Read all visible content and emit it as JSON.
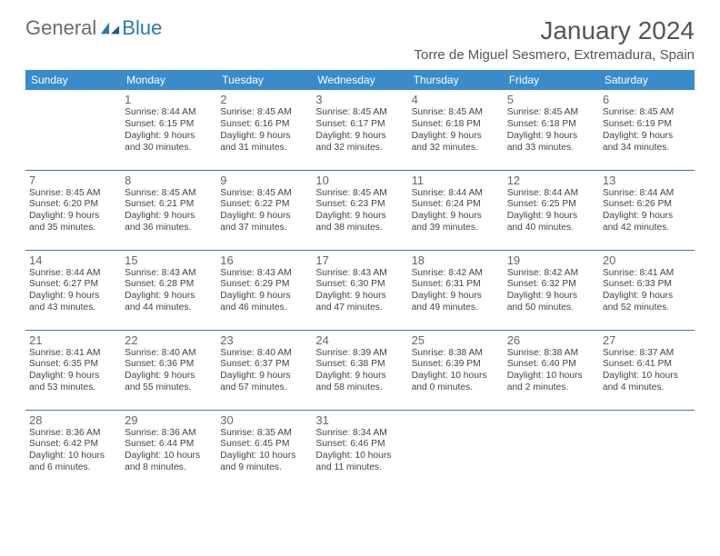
{
  "brand": {
    "part1": "General",
    "part2": "Blue"
  },
  "colors": {
    "header_bg": "#3a8bc9",
    "header_text": "#ffffff",
    "row_border": "#3a7aa8",
    "title_color": "#555555",
    "body_text": "#444444",
    "daynum_color": "#666666",
    "page_bg": "#ffffff"
  },
  "title": "January 2024",
  "subtitle": "Torre de Miguel Sesmero, Extremadura, Spain",
  "weekdays": [
    "Sunday",
    "Monday",
    "Tuesday",
    "Wednesday",
    "Thursday",
    "Friday",
    "Saturday"
  ],
  "weeks": [
    [
      null,
      {
        "n": "1",
        "sr": "Sunrise: 8:44 AM",
        "ss": "Sunset: 6:15 PM",
        "d1": "Daylight: 9 hours",
        "d2": "and 30 minutes."
      },
      {
        "n": "2",
        "sr": "Sunrise: 8:45 AM",
        "ss": "Sunset: 6:16 PM",
        "d1": "Daylight: 9 hours",
        "d2": "and 31 minutes."
      },
      {
        "n": "3",
        "sr": "Sunrise: 8:45 AM",
        "ss": "Sunset: 6:17 PM",
        "d1": "Daylight: 9 hours",
        "d2": "and 32 minutes."
      },
      {
        "n": "4",
        "sr": "Sunrise: 8:45 AM",
        "ss": "Sunset: 6:18 PM",
        "d1": "Daylight: 9 hours",
        "d2": "and 32 minutes."
      },
      {
        "n": "5",
        "sr": "Sunrise: 8:45 AM",
        "ss": "Sunset: 6:18 PM",
        "d1": "Daylight: 9 hours",
        "d2": "and 33 minutes."
      },
      {
        "n": "6",
        "sr": "Sunrise: 8:45 AM",
        "ss": "Sunset: 6:19 PM",
        "d1": "Daylight: 9 hours",
        "d2": "and 34 minutes."
      }
    ],
    [
      {
        "n": "7",
        "sr": "Sunrise: 8:45 AM",
        "ss": "Sunset: 6:20 PM",
        "d1": "Daylight: 9 hours",
        "d2": "and 35 minutes."
      },
      {
        "n": "8",
        "sr": "Sunrise: 8:45 AM",
        "ss": "Sunset: 6:21 PM",
        "d1": "Daylight: 9 hours",
        "d2": "and 36 minutes."
      },
      {
        "n": "9",
        "sr": "Sunrise: 8:45 AM",
        "ss": "Sunset: 6:22 PM",
        "d1": "Daylight: 9 hours",
        "d2": "and 37 minutes."
      },
      {
        "n": "10",
        "sr": "Sunrise: 8:45 AM",
        "ss": "Sunset: 6:23 PM",
        "d1": "Daylight: 9 hours",
        "d2": "and 38 minutes."
      },
      {
        "n": "11",
        "sr": "Sunrise: 8:44 AM",
        "ss": "Sunset: 6:24 PM",
        "d1": "Daylight: 9 hours",
        "d2": "and 39 minutes."
      },
      {
        "n": "12",
        "sr": "Sunrise: 8:44 AM",
        "ss": "Sunset: 6:25 PM",
        "d1": "Daylight: 9 hours",
        "d2": "and 40 minutes."
      },
      {
        "n": "13",
        "sr": "Sunrise: 8:44 AM",
        "ss": "Sunset: 6:26 PM",
        "d1": "Daylight: 9 hours",
        "d2": "and 42 minutes."
      }
    ],
    [
      {
        "n": "14",
        "sr": "Sunrise: 8:44 AM",
        "ss": "Sunset: 6:27 PM",
        "d1": "Daylight: 9 hours",
        "d2": "and 43 minutes."
      },
      {
        "n": "15",
        "sr": "Sunrise: 8:43 AM",
        "ss": "Sunset: 6:28 PM",
        "d1": "Daylight: 9 hours",
        "d2": "and 44 minutes."
      },
      {
        "n": "16",
        "sr": "Sunrise: 8:43 AM",
        "ss": "Sunset: 6:29 PM",
        "d1": "Daylight: 9 hours",
        "d2": "and 46 minutes."
      },
      {
        "n": "17",
        "sr": "Sunrise: 8:43 AM",
        "ss": "Sunset: 6:30 PM",
        "d1": "Daylight: 9 hours",
        "d2": "and 47 minutes."
      },
      {
        "n": "18",
        "sr": "Sunrise: 8:42 AM",
        "ss": "Sunset: 6:31 PM",
        "d1": "Daylight: 9 hours",
        "d2": "and 49 minutes."
      },
      {
        "n": "19",
        "sr": "Sunrise: 8:42 AM",
        "ss": "Sunset: 6:32 PM",
        "d1": "Daylight: 9 hours",
        "d2": "and 50 minutes."
      },
      {
        "n": "20",
        "sr": "Sunrise: 8:41 AM",
        "ss": "Sunset: 6:33 PM",
        "d1": "Daylight: 9 hours",
        "d2": "and 52 minutes."
      }
    ],
    [
      {
        "n": "21",
        "sr": "Sunrise: 8:41 AM",
        "ss": "Sunset: 6:35 PM",
        "d1": "Daylight: 9 hours",
        "d2": "and 53 minutes."
      },
      {
        "n": "22",
        "sr": "Sunrise: 8:40 AM",
        "ss": "Sunset: 6:36 PM",
        "d1": "Daylight: 9 hours",
        "d2": "and 55 minutes."
      },
      {
        "n": "23",
        "sr": "Sunrise: 8:40 AM",
        "ss": "Sunset: 6:37 PM",
        "d1": "Daylight: 9 hours",
        "d2": "and 57 minutes."
      },
      {
        "n": "24",
        "sr": "Sunrise: 8:39 AM",
        "ss": "Sunset: 6:38 PM",
        "d1": "Daylight: 9 hours",
        "d2": "and 58 minutes."
      },
      {
        "n": "25",
        "sr": "Sunrise: 8:38 AM",
        "ss": "Sunset: 6:39 PM",
        "d1": "Daylight: 10 hours",
        "d2": "and 0 minutes."
      },
      {
        "n": "26",
        "sr": "Sunrise: 8:38 AM",
        "ss": "Sunset: 6:40 PM",
        "d1": "Daylight: 10 hours",
        "d2": "and 2 minutes."
      },
      {
        "n": "27",
        "sr": "Sunrise: 8:37 AM",
        "ss": "Sunset: 6:41 PM",
        "d1": "Daylight: 10 hours",
        "d2": "and 4 minutes."
      }
    ],
    [
      {
        "n": "28",
        "sr": "Sunrise: 8:36 AM",
        "ss": "Sunset: 6:42 PM",
        "d1": "Daylight: 10 hours",
        "d2": "and 6 minutes."
      },
      {
        "n": "29",
        "sr": "Sunrise: 8:36 AM",
        "ss": "Sunset: 6:44 PM",
        "d1": "Daylight: 10 hours",
        "d2": "and 8 minutes."
      },
      {
        "n": "30",
        "sr": "Sunrise: 8:35 AM",
        "ss": "Sunset: 6:45 PM",
        "d1": "Daylight: 10 hours",
        "d2": "and 9 minutes."
      },
      {
        "n": "31",
        "sr": "Sunrise: 8:34 AM",
        "ss": "Sunset: 6:46 PM",
        "d1": "Daylight: 10 hours",
        "d2": "and 11 minutes."
      },
      null,
      null,
      null
    ]
  ]
}
